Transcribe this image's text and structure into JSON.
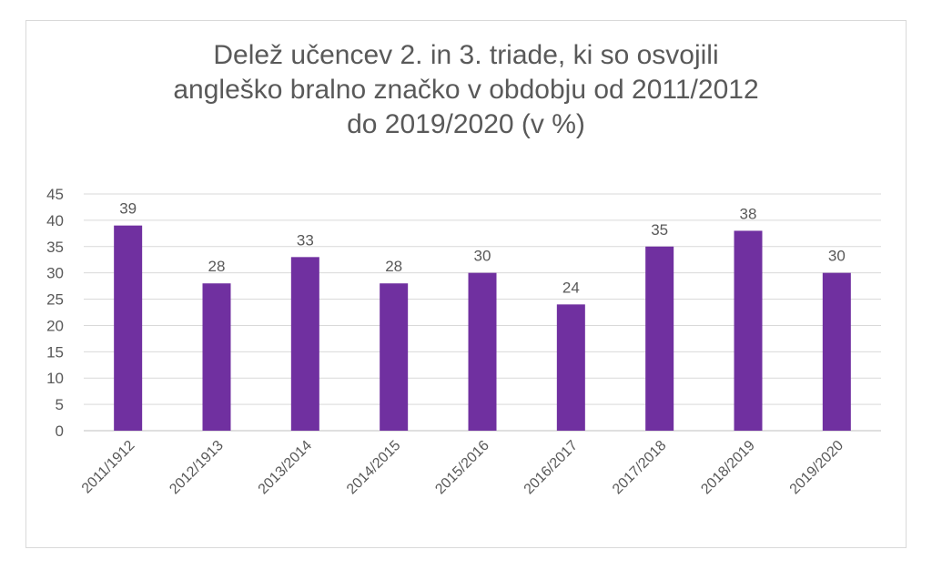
{
  "chart_data": {
    "type": "bar",
    "title_lines": [
      "Delež učencev 2. in 3. triade, ki so osvojili",
      "angleško bralno značko v obdobju od 2011/2012",
      "do 2019/2020 (v %)"
    ],
    "categories": [
      "2011/1912",
      "2012/1913",
      "2013/2014",
      "2014/2015",
      "2015/2016",
      "2016/2017",
      "2017/2018",
      "2018/2019",
      "2019/2020"
    ],
    "values": [
      39,
      28,
      33,
      28,
      30,
      24,
      35,
      38,
      30
    ],
    "ylim": [
      0,
      45
    ],
    "yticks": [
      0,
      5,
      10,
      15,
      20,
      25,
      30,
      35,
      40,
      45
    ],
    "grid": true,
    "legend": "none",
    "bar_color": "#7030a0"
  }
}
